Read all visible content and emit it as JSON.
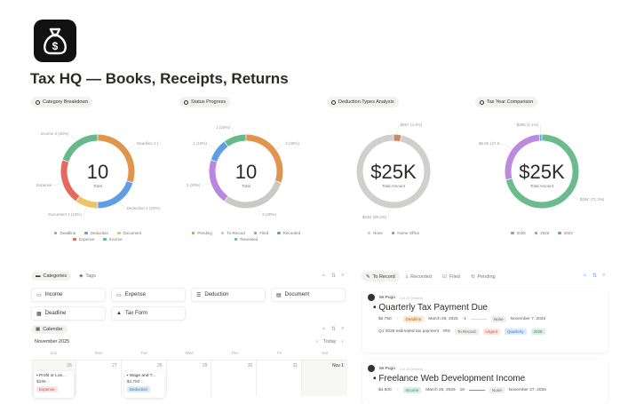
{
  "page": {
    "title": "Tax HQ — Books, Receipts, Returns",
    "logo_icon": "money-bag-icon"
  },
  "charts": [
    {
      "pill": "Category Breakdown",
      "type": "pie",
      "center": "10",
      "center_label": "Total",
      "slices": [
        {
          "name": "Deadline",
          "value": 3,
          "color": "#e0954f",
          "label": "Deadline 3 (..."
        },
        {
          "name": "Deduction",
          "value": 2,
          "color": "#5e9ee6",
          "label": "Deduction 2 (20%)"
        },
        {
          "name": "Document",
          "value": 1,
          "color": "#ecc463",
          "label": "Document 1 (10%)"
        },
        {
          "name": "Expense",
          "value": 2,
          "color": "#e5695e",
          "label": "Expense"
        },
        {
          "name": "Income",
          "value": 2,
          "color": "#68b989",
          "label": "Income 2 (20%)"
        }
      ],
      "legend": [
        "Deadline",
        "Deduction",
        "Document",
        "Expense",
        "Income"
      ]
    },
    {
      "pill": "Status Progress",
      "type": "pie",
      "center": "10",
      "center_label": "Total",
      "slices": [
        {
          "name": "Pending",
          "value": 3,
          "color": "#e0954f",
          "label": "3 (30%)"
        },
        {
          "name": "To Record",
          "value": 3,
          "color": "#c9c9c7",
          "label": "3 (30%)"
        },
        {
          "name": "Filed",
          "value": 2,
          "color": "#b987dd",
          "label": "2 (20%)"
        },
        {
          "name": "Recorded",
          "value": 1,
          "color": "#5e9ee6",
          "label": "1 (10%)"
        },
        {
          "name": "Reviewed",
          "value": 1,
          "color": "#68b989",
          "label": "1 (10%)"
        }
      ],
      "legend": [
        "Pending",
        "To Record",
        "Filed",
        "Recorded",
        "Reviewed"
      ]
    },
    {
      "pill": "Deduction Types Analysis",
      "type": "pie",
      "center": "$25K",
      "center_label": "Total Amount",
      "slices": [
        {
          "name": "Home Office",
          "value": 857,
          "color": "#c98a5f",
          "label": "$857 (3.4%)"
        },
        {
          "name": "None",
          "value": 24143,
          "color": "#cfcfcd",
          "label": "$24K (96.6%)"
        }
      ],
      "legend": [
        "None",
        "Home Office"
      ]
    },
    {
      "pill": "Tax Year Comparison",
      "type": "pie",
      "center": "$25K",
      "center_label": "Total Amount",
      "slices": [
        {
          "name": "2025",
          "value": 17800,
          "color": "#6cbb8c",
          "label": "$18K (71.3%)"
        },
        {
          "name": "2026",
          "value": 6900,
          "color": "#bb8ade",
          "label": "$6.9K (27.5..."
        },
        {
          "name": "2024",
          "value": 286,
          "color": "#5e9ee6",
          "label": "$286 (1.1%)"
        }
      ],
      "legend": [
        "2025",
        "2026",
        "2024"
      ]
    }
  ],
  "categories": {
    "tabs": [
      "Categories",
      "Tags"
    ],
    "items": [
      "Income",
      "Expense",
      "Deduction",
      "Document",
      "Deadline",
      "Tax Form"
    ]
  },
  "calendar": {
    "tab": "Calendar",
    "month": "November 2025",
    "today": "Today",
    "weekdays": [
      "Sun",
      "Mon",
      "Tue",
      "Wed",
      "Thu",
      "Fri",
      "Sat"
    ],
    "dates": [
      "26",
      "27",
      "28",
      "29",
      "30",
      "31",
      "Nov 1"
    ],
    "events": [
      {
        "title": "Profit or Los...",
        "amount": "$286",
        "tag": "Expense"
      },
      {
        "title": "Wage and T...",
        "amount": "$2,750",
        "tag": "Deduction"
      }
    ]
  },
  "status_tabs": [
    "To Record",
    "Recorded",
    "Filed",
    "Pending"
  ],
  "records": [
    {
      "author": "Mr.Pugo",
      "meta": "Oct 26 (edited)",
      "title": "Quarterly Tax Payment Due",
      "amount": "$2,750",
      "tag": "Deadline",
      "date": "March 29, 2025",
      "num": "-1",
      "type": "None",
      "due": "November 7, 2025",
      "desc": "Q1 2025 estimated tax payment",
      "agency": "IRS",
      "tags": [
        "To Record",
        "Urgent",
        "Quarterly",
        "2025"
      ]
    },
    {
      "author": "Mr.Pugo",
      "meta": "Oct 26 (edited)",
      "title": "Freelance Web Development Income",
      "amount": "$4,500",
      "tag": "Income",
      "date": "March 25, 2025",
      "num": "18",
      "type": "None",
      "due": "November 27, 2025"
    }
  ]
}
